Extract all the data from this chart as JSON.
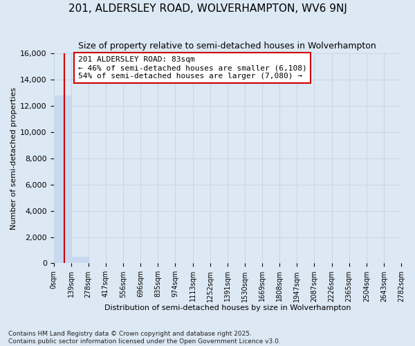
{
  "title": "201, ALDERSLEY ROAD, WOLVERHAMPTON, WV6 9NJ",
  "subtitle": "Size of property relative to semi-detached houses in Wolverhampton",
  "xlabel": "Distribution of semi-detached houses by size in Wolverhampton",
  "ylabel": "Number of semi-detached properties",
  "property_size": 83,
  "property_label": "201 ALDERSLEY ROAD: 83sqm",
  "pct_smaller": 46,
  "pct_larger": 54,
  "n_smaller": 6108,
  "n_larger": 7080,
  "bin_edges": [
    0,
    139,
    278,
    417,
    556,
    696,
    835,
    974,
    1113,
    1252,
    1391,
    1530,
    1669,
    1808,
    1947,
    2087,
    2226,
    2365,
    2504,
    2643,
    2782
  ],
  "bar_values": [
    12800,
    500,
    0,
    0,
    0,
    0,
    0,
    0,
    0,
    0,
    0,
    0,
    0,
    0,
    0,
    0,
    0,
    0,
    0,
    0
  ],
  "bar_color": "#c8d8ee",
  "line_color": "#cc0000",
  "annotation_box_facecolor": "#ffffff",
  "annotation_border_color": "#cc0000",
  "grid_color": "#c8d4e8",
  "background_color": "#dce8f4",
  "ylim": [
    0,
    16000
  ],
  "yticks": [
    0,
    2000,
    4000,
    6000,
    8000,
    10000,
    12000,
    14000,
    16000
  ],
  "footer": "Contains HM Land Registry data © Crown copyright and database right 2025.\nContains public sector information licensed under the Open Government Licence v3.0."
}
